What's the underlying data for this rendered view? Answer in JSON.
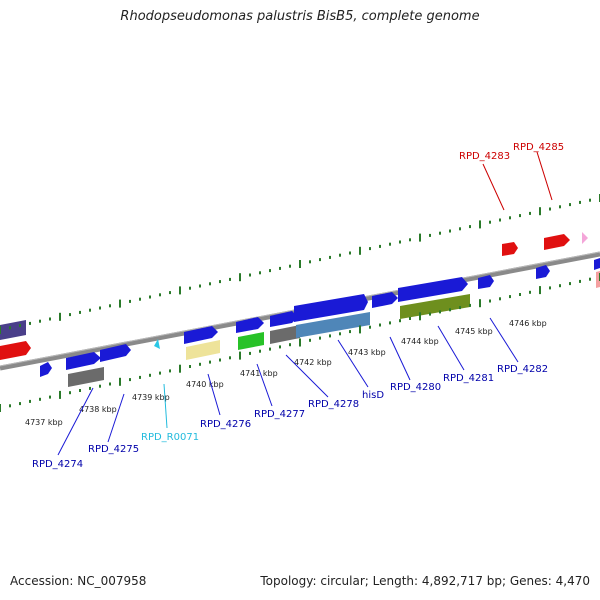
{
  "header": {
    "title": "Rhodopseudomonas palustris BisB5, complete genome"
  },
  "footer": {
    "accession": "Accession: NC_007958",
    "stats": "Topology: circular; Length: 4,892,717 bp; Genes: 4,470"
  },
  "ruler": {
    "labels": [
      "4737 kbp",
      "4738 kbp",
      "4739 kbp",
      "4740 kbp",
      "4741 kbp",
      "4742 kbp",
      "4743 kbp",
      "4744 kbp",
      "4745 kbp",
      "4746 kbp"
    ]
  },
  "colors": {
    "blue": "#1a1ad6",
    "red": "#e01010",
    "grey": "#6b6b6b",
    "green": "#28c228",
    "olive": "#6e8f1e",
    "steel": "#4f86b8",
    "yellow": "#eee39a",
    "cyan": "#2ac8e6",
    "purple": "#4a3f8a",
    "pink": "#f4a6d9",
    "backbone": "#8a8a8a",
    "label_blue": "#0000aa",
    "label_red": "#cc0000",
    "label_cyan": "#22bbdd"
  },
  "genes": [
    {
      "name": "RPD_4274",
      "color": "label_blue"
    },
    {
      "name": "RPD_4275",
      "color": "label_blue"
    },
    {
      "name": "RPD_R0071",
      "color": "label_cyan"
    },
    {
      "name": "RPD_4276",
      "color": "label_blue"
    },
    {
      "name": "RPD_4277",
      "color": "label_blue"
    },
    {
      "name": "RPD_4278",
      "color": "label_blue"
    },
    {
      "name": "hisD",
      "color": "label_blue"
    },
    {
      "name": "RPD_4280",
      "color": "label_blue"
    },
    {
      "name": "RPD_4281",
      "color": "label_blue"
    },
    {
      "name": "RPD_4282",
      "color": "label_blue"
    },
    {
      "name": "RPD_4283",
      "color": "label_red"
    },
    {
      "name": "RPD_4285",
      "color": "label_red"
    }
  ]
}
